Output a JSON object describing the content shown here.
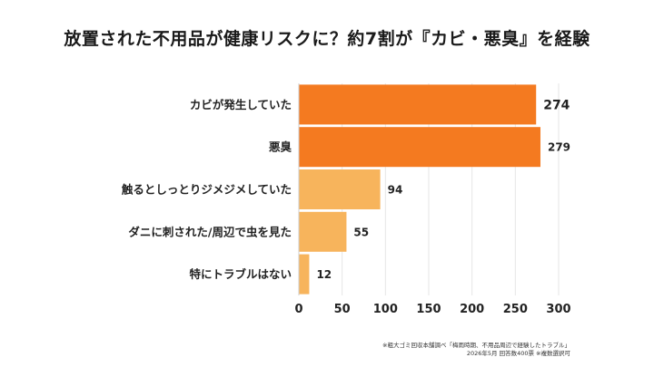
{
  "chart_data": {
    "type": "bar",
    "orientation": "horizontal",
    "title": "放置された不用品が健康リスクに？約7割が『カビ・悪臭』を経験",
    "categories": [
      "カビが発生していた",
      "悪臭",
      "触るとしっとりジメジメしていた",
      "ダニに刺された/周辺で虫を見た",
      "特にトラブルはない"
    ],
    "values": [
      274,
      279,
      94,
      55,
      12
    ],
    "value_labels": [
      "274",
      "279",
      "94",
      "55",
      "12"
    ],
    "bar_colors": [
      "#F47A20",
      "#F47A20",
      "#F7B45C",
      "#F7B45C",
      "#F7B45C"
    ],
    "xlim": [
      0,
      300
    ],
    "xticks": [
      0,
      50,
      100,
      150,
      200,
      250,
      300
    ],
    "xtick_labels": [
      "0",
      "50",
      "100",
      "150",
      "200",
      "250",
      "300"
    ],
    "grid": "vertical",
    "legend": "none"
  },
  "source_line1": "※粗大ゴミ回収本舗調べ「梅雨時期、不用品周辺で経験したトラブル」",
  "source_line2": "2026年5月 回答数400票 ※複数選択可"
}
